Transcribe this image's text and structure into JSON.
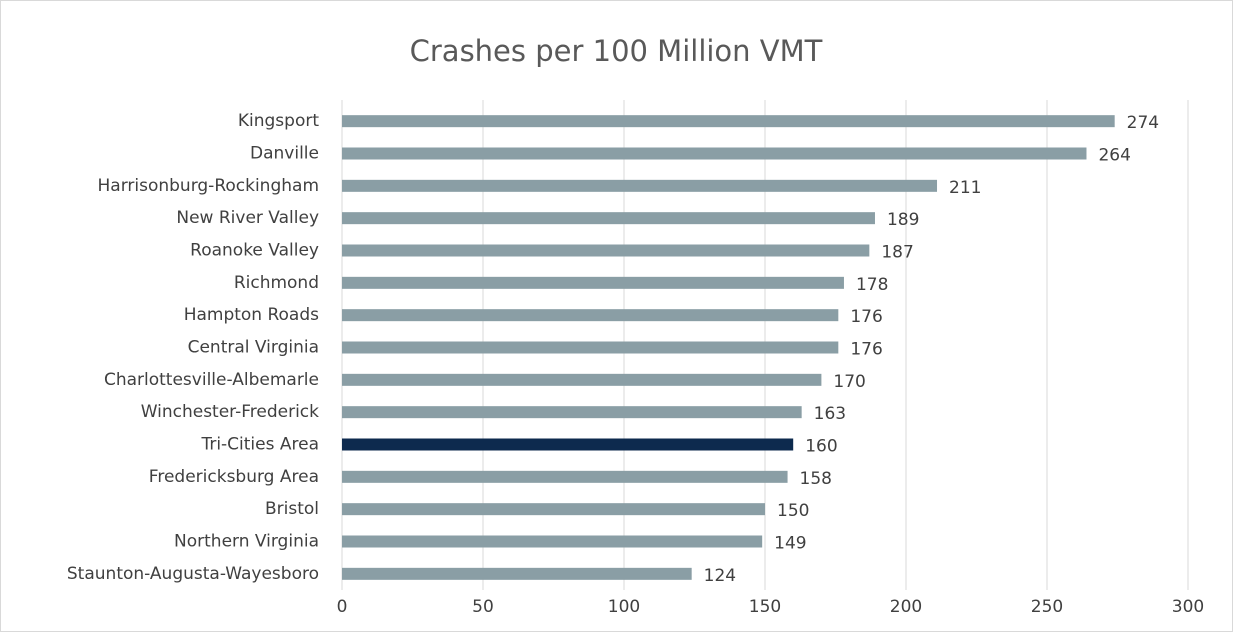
{
  "chart_data": {
    "type": "bar",
    "orientation": "horizontal",
    "title": "Crashes per 100 Million VMT",
    "categories": [
      "Kingsport",
      "Danville",
      "Harrisonburg-Rockingham",
      "New River Valley",
      "Roanoke Valley",
      "Richmond",
      "Hampton Roads",
      "Central Virginia",
      "Charlottesville-Albemarle",
      "Winchester-Frederick",
      "Tri-Cities Area",
      "Fredericksburg Area",
      "Bristol",
      "Northern Virginia",
      "Staunton-Augusta-Wayesboro"
    ],
    "values": [
      274,
      264,
      211,
      189,
      187,
      178,
      176,
      176,
      170,
      163,
      160,
      158,
      150,
      149,
      124
    ],
    "colors": [
      "#8a9ea5",
      "#8a9ea5",
      "#8a9ea5",
      "#8a9ea5",
      "#8a9ea5",
      "#8a9ea5",
      "#8a9ea5",
      "#8a9ea5",
      "#8a9ea5",
      "#8a9ea5",
      "#0d2a4e",
      "#8a9ea5",
      "#8a9ea5",
      "#8a9ea5",
      "#8a9ea5"
    ],
    "xlim": [
      0,
      300
    ],
    "xticks": [
      0,
      50,
      100,
      150,
      200,
      250,
      300
    ],
    "grid": true
  }
}
